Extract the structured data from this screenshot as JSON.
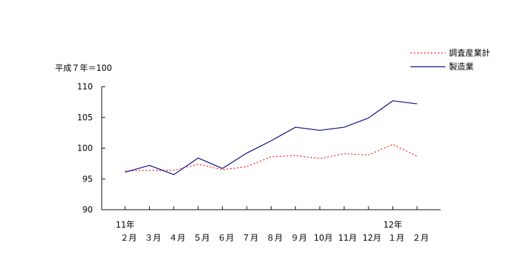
{
  "chart_data": {
    "type": "line",
    "base_note": "平成７年＝100",
    "y_ticks": [
      "110",
      "105",
      "100",
      "95",
      "90"
    ],
    "ylim": [
      90,
      110
    ],
    "year_labels": [
      {
        "text": "11年",
        "at_index": 0
      },
      {
        "text": "12年",
        "at_index": 11
      }
    ],
    "categories": [
      "２月",
      "３月",
      "４月",
      "５月",
      "６月",
      "７月",
      "８月",
      "９月",
      "10月",
      "11月",
      "12月",
      "１月",
      "２月"
    ],
    "series": [
      {
        "name": "調査産業計",
        "color": "#ff0000",
        "style": "dotted",
        "values": [
          96.3,
          96.4,
          96.4,
          97.4,
          96.5,
          97.0,
          98.6,
          98.8,
          98.3,
          99.1,
          98.9,
          100.6,
          98.7
        ]
      },
      {
        "name": "製造業",
        "color": "#000080",
        "style": "solid",
        "values": [
          96.1,
          97.2,
          95.7,
          98.4,
          96.7,
          99.2,
          101.2,
          103.4,
          102.9,
          103.4,
          104.9,
          107.7,
          107.2
        ]
      }
    ],
    "legend_position": "top-right",
    "grid": false
  }
}
